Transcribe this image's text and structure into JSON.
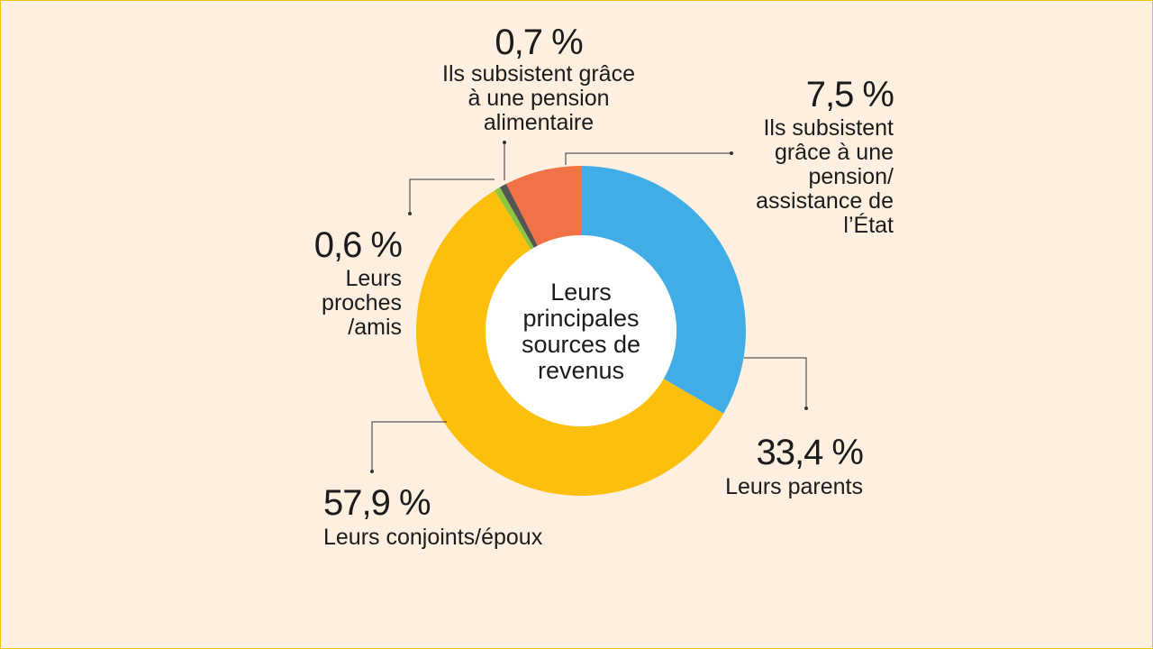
{
  "chart_data": {
    "type": "pie",
    "variant": "donut",
    "title": "Leurs principales sources de revenus",
    "series": [
      {
        "name": "Leurs parents",
        "value": 33.4,
        "pct_label": "33,4 %",
        "color": "#41ade6"
      },
      {
        "name": "Leurs conjoints/époux",
        "value": 57.9,
        "pct_label": "57,9 %",
        "color": "#fbbf0c"
      },
      {
        "name": "Leurs proches /amis",
        "value": 0.6,
        "pct_label": "0,6 %",
        "color": "#8fc640"
      },
      {
        "name": "Ils subsistent grâce à une pension alimentaire",
        "value": 0.7,
        "pct_label": "0,7 %",
        "color": "#555555"
      },
      {
        "name": "Ils subsistent grâce à une pension/ assistance de l’État",
        "value": 7.5,
        "pct_label": "7,5 %",
        "color": "#f07246"
      }
    ]
  },
  "center_lines": [
    "Leurs",
    "principales",
    "sources de",
    "revenus"
  ],
  "labels": {
    "parents": {
      "pct": "33,4 %",
      "lines": [
        "Leurs parents"
      ]
    },
    "conjoints": {
      "pct": "57,9 %",
      "lines": [
        "Leurs conjoints/époux"
      ]
    },
    "proches": {
      "pct": "0,6 %",
      "lines": [
        "Leurs",
        "proches",
        "/amis"
      ]
    },
    "alimentaire": {
      "pct": "0,7 %",
      "lines": [
        "Ils subsistent grâce",
        "à une pension",
        "alimentaire"
      ]
    },
    "etat": {
      "pct": "7,5 %",
      "lines": [
        "Ils subsistent",
        "grâce à une",
        "pension/",
        "assistance de",
        "l’État"
      ]
    }
  }
}
